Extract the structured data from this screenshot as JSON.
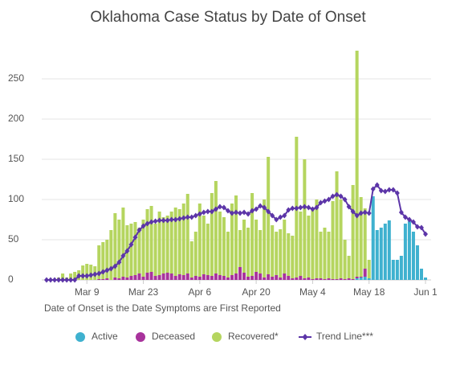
{
  "chart_data": {
    "type": "bar",
    "stacked": true,
    "title": "Oklahoma Case Status by Date of Onset",
    "note": "Date of Onset is the Date Symptoms are First Reported",
    "categories": [
      null,
      null,
      null,
      null,
      null,
      null,
      null,
      null,
      null,
      null,
      "Mar 9",
      null,
      null,
      null,
      null,
      null,
      null,
      null,
      null,
      null,
      null,
      null,
      null,
      null,
      "Mar 23",
      null,
      null,
      null,
      null,
      null,
      null,
      null,
      null,
      null,
      null,
      null,
      null,
      null,
      "Apr 6",
      null,
      null,
      null,
      null,
      null,
      null,
      null,
      null,
      null,
      null,
      null,
      null,
      null,
      "Apr 20",
      null,
      null,
      null,
      null,
      null,
      null,
      null,
      null,
      null,
      null,
      null,
      null,
      null,
      "May 4",
      null,
      null,
      null,
      null,
      null,
      null,
      null,
      null,
      null,
      null,
      null,
      null,
      null,
      "May 18",
      null,
      null,
      null,
      null,
      null,
      null,
      null,
      null,
      null,
      null,
      null,
      null,
      null,
      "Jun 1"
    ],
    "ylim": [
      0,
      290
    ],
    "yticks": [
      0,
      50,
      100,
      150,
      200,
      250
    ],
    "grid": true,
    "legend": "bottom",
    "series": [
      {
        "name": "Active",
        "color": "#3fb1cf",
        "type": "bar",
        "values": [
          0,
          0,
          0,
          0,
          0,
          0,
          0,
          0,
          0,
          0,
          0,
          0,
          0,
          0,
          0,
          0,
          0,
          0,
          0,
          0,
          0,
          0,
          0,
          0,
          0,
          0,
          0,
          0,
          0,
          0,
          0,
          0,
          0,
          0,
          0,
          0,
          0,
          0,
          0,
          0,
          0,
          0,
          0,
          0,
          0,
          0,
          0,
          0,
          0,
          0,
          0,
          0,
          0,
          0,
          0,
          0,
          0,
          0,
          0,
          0,
          0,
          0,
          0,
          0,
          0,
          0,
          0,
          0,
          0,
          0,
          0,
          0,
          0,
          0,
          0,
          0,
          0,
          2,
          3,
          4,
          2,
          104,
          62,
          65,
          70,
          74,
          25,
          25,
          30,
          70,
          73,
          60,
          43,
          14,
          3
        ]
      },
      {
        "name": "Deceased",
        "color": "#a8339c",
        "type": "bar",
        "values": [
          0,
          0,
          0,
          0,
          0,
          0,
          0,
          0,
          0,
          0,
          0,
          0,
          0,
          1,
          1,
          2,
          0,
          3,
          2,
          4,
          3,
          5,
          6,
          8,
          4,
          9,
          10,
          5,
          6,
          8,
          9,
          8,
          5,
          7,
          6,
          8,
          3,
          5,
          4,
          7,
          6,
          5,
          8,
          6,
          5,
          3,
          6,
          8,
          16,
          9,
          4,
          5,
          10,
          8,
          3,
          7,
          4,
          6,
          3,
          8,
          5,
          2,
          3,
          5,
          2,
          3,
          1,
          2,
          2,
          1,
          2,
          1,
          1,
          2,
          1,
          2,
          1,
          2,
          1,
          10,
          0,
          0,
          0,
          0,
          0,
          0,
          0,
          0,
          0,
          0,
          0,
          0,
          0,
          0,
          0
        ]
      },
      {
        "name": "Recovered*",
        "color": "#b5d55f",
        "type": "bar",
        "values": [
          0,
          1,
          0,
          3,
          8,
          3,
          8,
          10,
          12,
          18,
          20,
          19,
          17,
          42,
          46,
          48,
          62,
          80,
          73,
          86,
          65,
          65,
          66,
          57,
          71,
          79,
          82,
          65,
          79,
          70,
          71,
          77,
          85,
          81,
          89,
          99,
          45,
          55,
          91,
          73,
          64,
          103,
          115,
          79,
          73,
          57,
          89,
          97,
          46,
          66,
          61,
          103,
          65,
          54,
          97,
          146,
          64,
          54,
          60,
          67,
          53,
          53,
          175,
          80,
          148,
          77,
          89,
          98,
          58,
          64,
          58,
          97,
          134,
          98,
          49,
          28,
          117,
          281,
          99,
          75,
          23,
          0,
          0,
          0,
          0,
          0,
          0,
          0,
          0,
          0,
          0,
          0,
          0,
          0,
          0
        ]
      },
      {
        "name": "Trend Line***",
        "color": "#5c35a8",
        "type": "line",
        "values": [
          0,
          0,
          0,
          0,
          0,
          0,
          0,
          0,
          5,
          5,
          5,
          6,
          7,
          8,
          10,
          12,
          14,
          17,
          22,
          30,
          36,
          44,
          53,
          62,
          67,
          70,
          72,
          73,
          74,
          74,
          74,
          75,
          75,
          76,
          77,
          78,
          78,
          80,
          82,
          84,
          85,
          85,
          88,
          91,
          90,
          86,
          83,
          84,
          83,
          84,
          82,
          86,
          88,
          92,
          90,
          85,
          80,
          75,
          78,
          80,
          87,
          89,
          89,
          90,
          91,
          90,
          88,
          90,
          96,
          98,
          100,
          104,
          106,
          104,
          100,
          91,
          85,
          80,
          83,
          84,
          83,
          113,
          118,
          111,
          110,
          112,
          112,
          108,
          84,
          78,
          75,
          72,
          66,
          65,
          57
        ]
      }
    ]
  }
}
